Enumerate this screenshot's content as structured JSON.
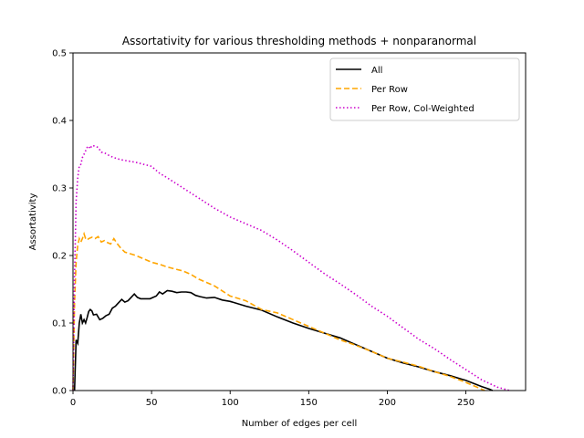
{
  "chart_data": {
    "type": "line",
    "title": "Assortativity for various thresholding methods + nonparanormal",
    "xlabel": "Number of edges per cell",
    "ylabel": "Assortativity",
    "xlim": [
      0,
      288
    ],
    "ylim": [
      0,
      0.5
    ],
    "xticks": [
      0,
      50,
      100,
      150,
      200,
      250
    ],
    "yticks": [
      0.0,
      0.1,
      0.2,
      0.3,
      0.4,
      0.5
    ],
    "xtick_labels": [
      "0",
      "50",
      "100",
      "150",
      "200",
      "250"
    ],
    "ytick_labels": [
      "0.0",
      "0.1",
      "0.2",
      "0.3",
      "0.4",
      "0.5"
    ],
    "legend_position": "top-right",
    "grid": false,
    "series": [
      {
        "name": "All",
        "color": "#000000",
        "style": "solid",
        "x": [
          1,
          2,
          3,
          4,
          5,
          6,
          7,
          8,
          9,
          10,
          11,
          12,
          13,
          15,
          17,
          19,
          21,
          23,
          25,
          27,
          29,
          31,
          33,
          35,
          37,
          39,
          41,
          43,
          45,
          47,
          49,
          51,
          53,
          55,
          57,
          60,
          63,
          66,
          69,
          72,
          75,
          78,
          81,
          85,
          90,
          95,
          100,
          110,
          120,
          130,
          140,
          150,
          160,
          170,
          180,
          190,
          200,
          210,
          220,
          230,
          240,
          250,
          260,
          265,
          267
        ],
        "y": [
          0.0,
          0.075,
          0.07,
          0.1,
          0.113,
          0.1,
          0.105,
          0.1,
          0.108,
          0.117,
          0.12,
          0.118,
          0.112,
          0.113,
          0.105,
          0.107,
          0.111,
          0.113,
          0.122,
          0.125,
          0.13,
          0.135,
          0.131,
          0.133,
          0.138,
          0.143,
          0.138,
          0.136,
          0.136,
          0.136,
          0.136,
          0.138,
          0.14,
          0.146,
          0.143,
          0.148,
          0.147,
          0.145,
          0.146,
          0.146,
          0.145,
          0.141,
          0.139,
          0.137,
          0.138,
          0.134,
          0.132,
          0.125,
          0.119,
          0.109,
          0.1,
          0.092,
          0.085,
          0.078,
          0.068,
          0.058,
          0.048,
          0.041,
          0.035,
          0.028,
          0.022,
          0.015,
          0.006,
          0.002,
          0.0
        ]
      },
      {
        "name": "Per Row",
        "color": "#ffa500",
        "style": "dashed",
        "x": [
          0,
          1,
          2,
          3,
          4,
          5,
          6,
          7,
          8,
          9,
          10,
          12,
          14,
          16,
          18,
          20,
          22,
          24,
          26,
          28,
          30,
          33,
          36,
          40,
          45,
          50,
          55,
          60,
          65,
          70,
          75,
          80,
          90,
          100,
          110,
          120,
          130,
          140,
          150,
          160,
          170,
          180,
          190,
          200,
          210,
          220,
          230,
          240,
          250,
          260,
          262
        ],
        "y": [
          0.0,
          0.13,
          0.19,
          0.215,
          0.225,
          0.22,
          0.225,
          0.232,
          0.225,
          0.223,
          0.225,
          0.227,
          0.225,
          0.228,
          0.22,
          0.222,
          0.219,
          0.217,
          0.225,
          0.218,
          0.212,
          0.205,
          0.203,
          0.2,
          0.195,
          0.19,
          0.187,
          0.183,
          0.18,
          0.177,
          0.172,
          0.165,
          0.155,
          0.14,
          0.133,
          0.12,
          0.115,
          0.105,
          0.095,
          0.085,
          0.075,
          0.067,
          0.058,
          0.048,
          0.042,
          0.036,
          0.028,
          0.021,
          0.012,
          0.002,
          0.0
        ]
      },
      {
        "name": "Per Row, Col-Weighted",
        "color": "#cc00cc",
        "style": "dotted",
        "x": [
          0,
          1,
          2,
          3,
          4,
          5,
          6,
          7,
          8,
          9,
          10,
          11,
          12,
          14,
          16,
          18,
          20,
          23,
          26,
          30,
          35,
          40,
          45,
          50,
          55,
          60,
          70,
          80,
          90,
          100,
          110,
          120,
          130,
          140,
          150,
          160,
          170,
          180,
          190,
          200,
          210,
          220,
          230,
          240,
          250,
          260,
          270,
          278
        ],
        "y": [
          0.0,
          0.17,
          0.28,
          0.315,
          0.333,
          0.335,
          0.345,
          0.35,
          0.355,
          0.36,
          0.362,
          0.358,
          0.363,
          0.362,
          0.36,
          0.353,
          0.352,
          0.348,
          0.345,
          0.342,
          0.34,
          0.338,
          0.335,
          0.332,
          0.322,
          0.315,
          0.3,
          0.285,
          0.27,
          0.257,
          0.247,
          0.237,
          0.223,
          0.207,
          0.19,
          0.173,
          0.158,
          0.142,
          0.125,
          0.11,
          0.093,
          0.076,
          0.062,
          0.046,
          0.031,
          0.016,
          0.005,
          0.0
        ]
      }
    ]
  }
}
